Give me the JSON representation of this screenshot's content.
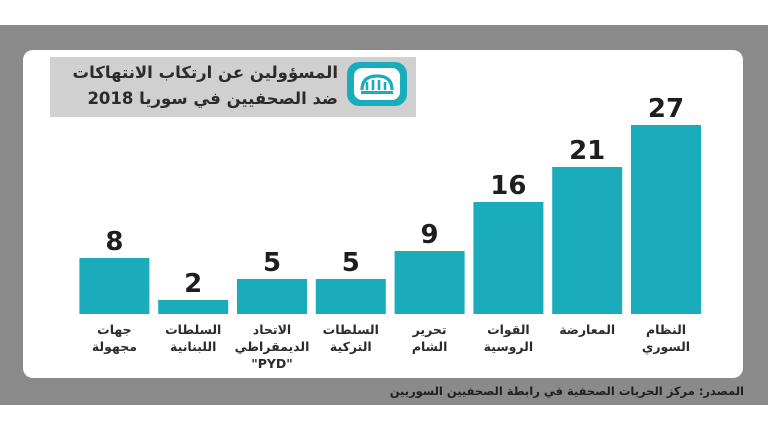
{
  "title": {
    "line1": "المسؤولين عن ارتكاب الانتهاكات",
    "line2": "ضد الصحفيين في سوريا 2018"
  },
  "logo_icon": "syrian-journalists-association-logo",
  "source": "المصدر: مركز الحريات الصحفية في رابطة الصحفيين السوريين",
  "colors": {
    "bar": "#1aacba",
    "background_band": "#8a8a8a",
    "title_box": "#d0d0d0",
    "label_text": "#2b2b2b"
  },
  "chart_data": {
    "type": "bar",
    "categories": [
      [
        "النظام",
        "السوري"
      ],
      [
        "المعارضة"
      ],
      [
        "القوات",
        "الروسية"
      ],
      [
        "تحرير",
        "الشام"
      ],
      [
        "السلطات",
        "التركية"
      ],
      [
        "الاتحاد",
        "الديمقراطي",
        "\"PYD\""
      ],
      [
        "السلطات",
        "اللبنانية"
      ],
      [
        "جهات",
        "مجهولة"
      ]
    ],
    "values": [
      27,
      21,
      16,
      9,
      5,
      5,
      2,
      8
    ],
    "ylim": [
      0,
      27
    ],
    "grid": false,
    "legend": "none"
  }
}
